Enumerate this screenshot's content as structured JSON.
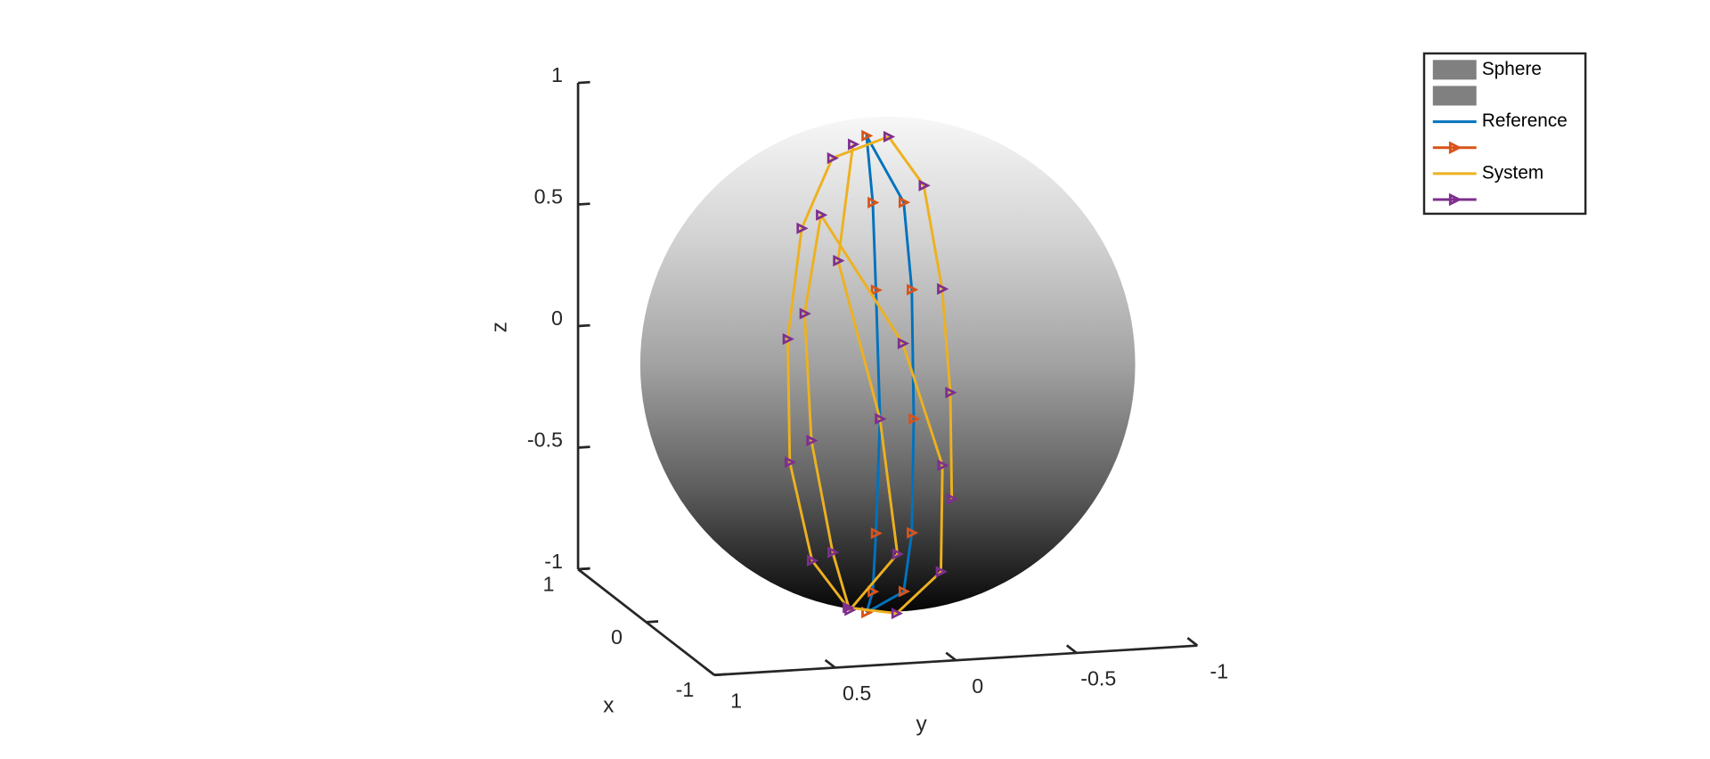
{
  "chart_data": {
    "type": "line3d",
    "xlabel": "x",
    "ylabel": "y",
    "zlabel": "z",
    "xlim": [
      -1,
      1
    ],
    "ylim": [
      -1,
      1
    ],
    "zlim": [
      -1,
      1
    ],
    "xticks": [
      -1,
      0,
      1
    ],
    "yticks": [
      -1,
      -0.5,
      0,
      0.5,
      1
    ],
    "zticks": [
      -1,
      -0.5,
      0,
      0.5,
      1
    ],
    "legend": "northeast",
    "sphere": {
      "name": "Sphere",
      "color": "#808080"
    },
    "series": [
      {
        "name": "Reference",
        "color": "#0072BD",
        "marker": ">",
        "marker_color": "#D95319",
        "x": [
          -0.15,
          -0.56,
          -0.82,
          -0.95,
          -0.82,
          -0.56,
          -0.15,
          -0.59,
          -0.85,
          -0.985,
          -0.85,
          -0.59,
          -0.15
        ],
        "y": [
          0.13,
          0.22,
          0.28,
          0.3,
          0.28,
          0.22,
          0.13,
          0.1,
          0.14,
          0.17,
          0.14,
          0.1,
          0.13
        ],
        "z": [
          -0.98,
          -0.8,
          -0.5,
          0,
          0.5,
          0.8,
          0.98,
          0.8,
          0.5,
          0,
          -0.5,
          -0.8,
          -0.98
        ]
      },
      {
        "name": "System",
        "color": "#EDB120",
        "marker": ">",
        "marker_color": "#7E2F8E",
        "x": [
          -0.94,
          -0.99,
          -0.87,
          -0.53,
          -0.19,
          -0.25,
          -0.51,
          -0.73,
          -0.76,
          -0.59,
          -0.3,
          -0.2,
          -0.71,
          -0.98,
          -0.93,
          -0.51,
          -0.73,
          -0.83,
          -0.68,
          -0.22,
          -0.78,
          -0.95,
          -0.69,
          -0.2
        ],
        "y": [
          0.0,
          0.02,
          0.02,
          0.0,
          0.05,
          0.3,
          0.5,
          0.62,
          0.62,
          0.48,
          0.25,
          0.02,
          -0.02,
          0.05,
          0.2,
          0.42,
          0.55,
          0.55,
          0.42,
          0.22,
          0.18,
          0.3,
          0.4,
          0.2
        ],
        "z": [
          -0.35,
          0.1,
          0.5,
          0.85,
          0.98,
          0.92,
          0.7,
          0.3,
          -0.2,
          -0.65,
          -0.92,
          -0.98,
          -0.7,
          -0.2,
          0.3,
          0.75,
          0.4,
          -0.1,
          -0.6,
          -0.95,
          -0.6,
          0,
          0.6,
          0.96
        ]
      }
    ]
  }
}
